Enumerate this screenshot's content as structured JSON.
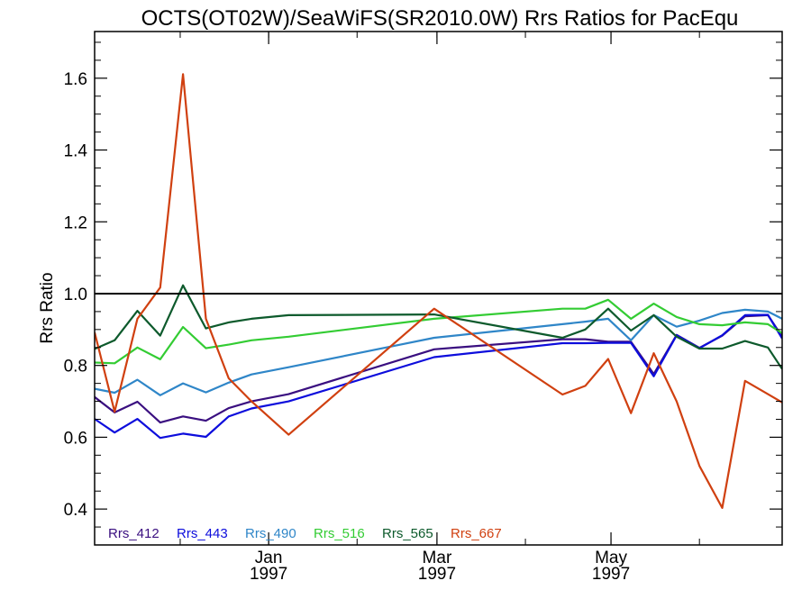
{
  "chart_data": {
    "type": "line",
    "title": "OCTS(OT02W)/SeaWiFS(SR2010.0W)  Rrs Ratios for PacEqu",
    "xlabel": "",
    "ylabel": "Rrs Ratio",
    "xlim": [
      "1996-11-01",
      "1997-06-30"
    ],
    "ylim": [
      0.3,
      1.73
    ],
    "y_ticks": [
      0.4,
      0.6,
      0.8,
      1.0,
      1.2,
      1.4,
      1.6
    ],
    "y_tick_labels": [
      "0.4",
      "0.6",
      "0.8",
      "1.0",
      "1.2",
      "1.4",
      "1.6"
    ],
    "x_ticks": [
      {
        "date": "1997-01-01",
        "label_line1": "Jan",
        "label_line2": "1997"
      },
      {
        "date": "1997-03-01",
        "label_line1": "Mar",
        "label_line2": "1997"
      },
      {
        "date": "1997-05-01",
        "label_line1": "May",
        "label_line2": "1997"
      }
    ],
    "reference_line": {
      "y": 1.0,
      "color": "#000000"
    },
    "legend_position": "bottom-left",
    "x": [
      "1996-11-01",
      "1996-11-08",
      "1996-11-16",
      "1996-11-24",
      "1996-12-02",
      "1996-12-10",
      "1996-12-18",
      "1996-12-26",
      "1997-01-08",
      "1997-02-28",
      "1997-04-14",
      "1997-04-22",
      "1997-04-30",
      "1997-05-08",
      "1997-05-16",
      "1997-05-24",
      "1997-06-01",
      "1997-06-09",
      "1997-06-17",
      "1997-06-25",
      "1997-06-30"
    ],
    "series": [
      {
        "name": "Rrs_412",
        "color": "#3a0f80",
        "values": [
          0.712,
          0.669,
          0.699,
          0.641,
          0.658,
          0.646,
          0.681,
          0.7,
          0.72,
          0.845,
          0.873,
          0.873,
          0.866,
          0.866,
          0.776,
          0.885,
          0.849,
          0.883,
          0.937,
          0.94,
          0.88
        ]
      },
      {
        "name": "Rrs_443",
        "color": "#0d0ddc",
        "values": [
          0.651,
          0.613,
          0.651,
          0.598,
          0.61,
          0.601,
          0.658,
          0.68,
          0.7,
          0.823,
          0.862,
          0.862,
          0.863,
          0.863,
          0.77,
          0.884,
          0.848,
          0.884,
          0.94,
          0.941,
          0.875
        ]
      },
      {
        "name": "Rrs_490",
        "color": "#2f86c8",
        "values": [
          0.735,
          0.724,
          0.76,
          0.717,
          0.75,
          0.725,
          0.752,
          0.775,
          0.795,
          0.877,
          0.915,
          0.922,
          0.93,
          0.87,
          0.94,
          0.908,
          0.925,
          0.946,
          0.955,
          0.95,
          0.93
        ]
      },
      {
        "name": "Rrs_516",
        "color": "#33cc33",
        "values": [
          0.808,
          0.806,
          0.85,
          0.817,
          0.907,
          0.848,
          0.858,
          0.87,
          0.88,
          0.93,
          0.958,
          0.958,
          0.983,
          0.93,
          0.972,
          0.935,
          0.915,
          0.912,
          0.92,
          0.915,
          0.89
        ]
      },
      {
        "name": "Rrs_565",
        "color": "#0d5a2c",
        "values": [
          0.846,
          0.87,
          0.952,
          0.883,
          1.023,
          0.903,
          0.92,
          0.93,
          0.94,
          0.942,
          0.877,
          0.9,
          0.958,
          0.897,
          0.94,
          0.88,
          0.847,
          0.847,
          0.868,
          0.85,
          0.79
        ]
      },
      {
        "name": "Rrs_667",
        "color": "#d04010",
        "values": [
          0.892,
          0.671,
          0.93,
          1.017,
          1.611,
          0.93,
          0.764,
          0.7,
          0.607,
          0.958,
          0.719,
          0.743,
          0.818,
          0.667,
          0.834,
          0.7,
          0.52,
          0.403,
          0.757,
          0.72,
          0.697
        ]
      }
    ]
  }
}
